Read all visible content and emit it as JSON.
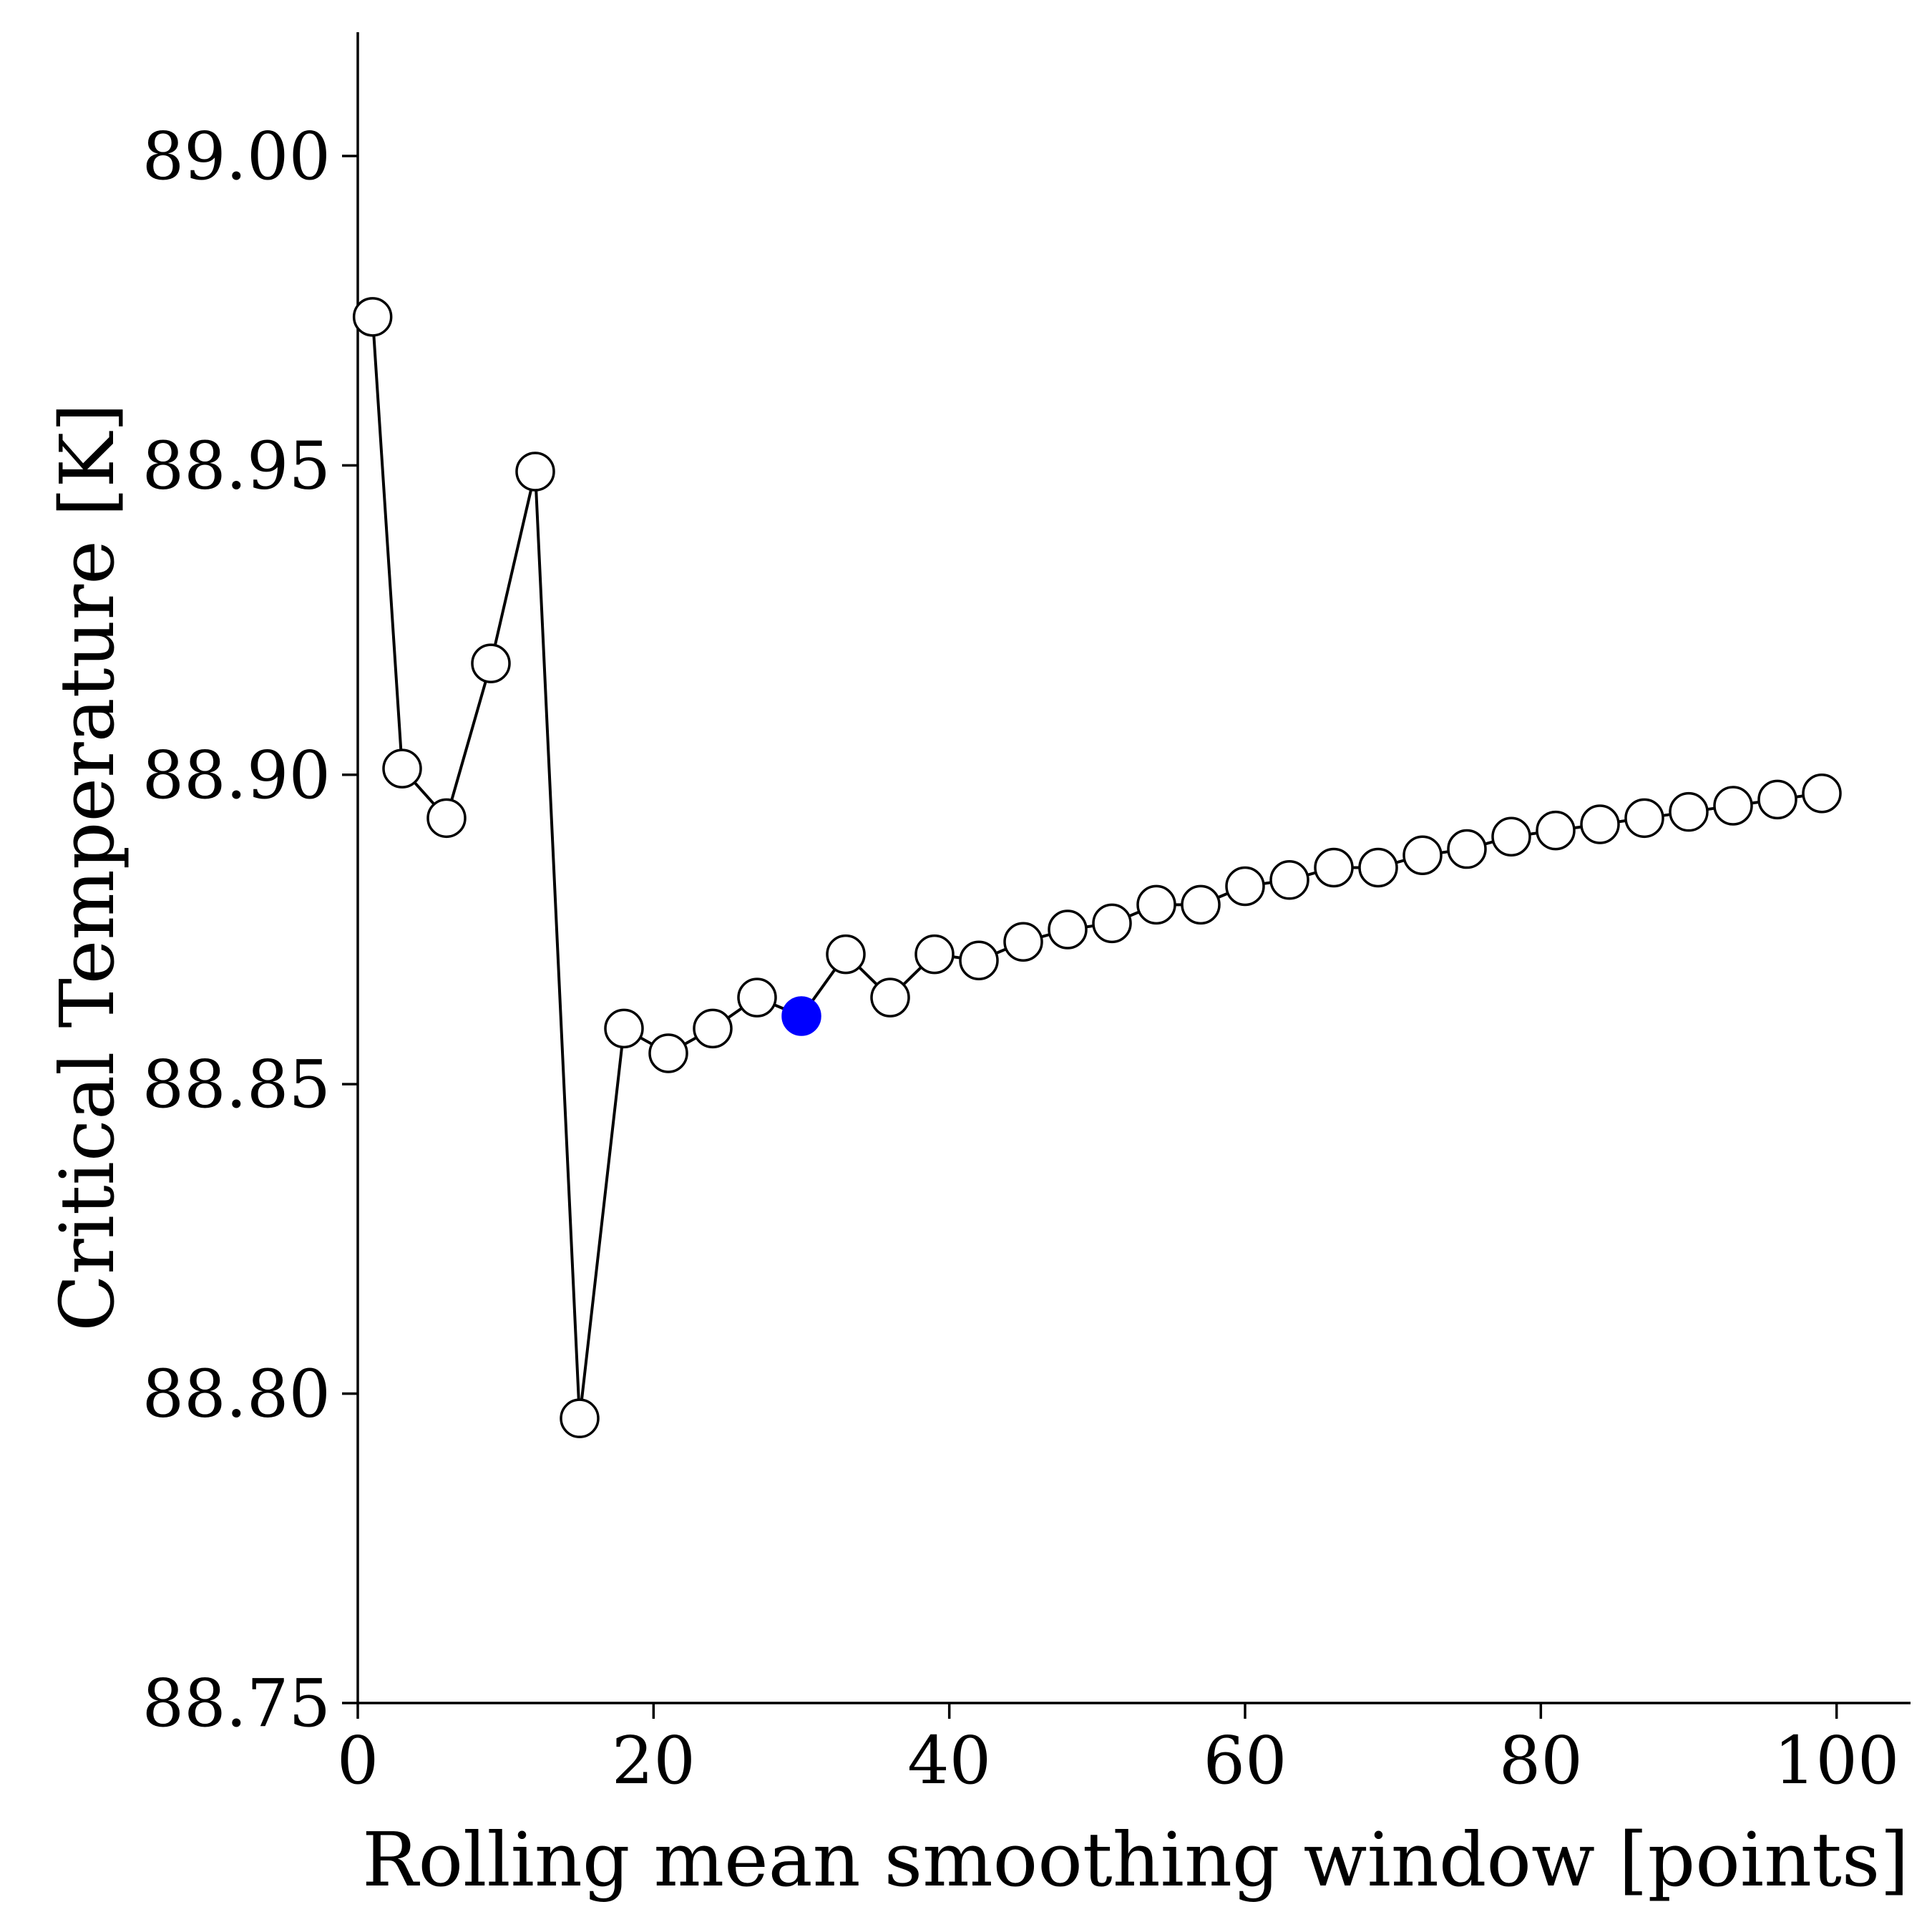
{
  "chart_data": {
    "type": "line",
    "title": "",
    "xlabel": "Rolling mean smoothing window [points]",
    "ylabel": "Critical Temperature [K]",
    "xlim": [
      0,
      105
    ],
    "ylim": [
      88.75,
      89.02
    ],
    "x_ticks": [
      0,
      20,
      40,
      60,
      80,
      100
    ],
    "x_tick_labels": [
      "0",
      "20",
      "40",
      "60",
      "80",
      "100"
    ],
    "y_ticks": [
      88.75,
      88.8,
      88.85,
      88.9,
      88.95,
      89.0
    ],
    "y_tick_labels": [
      "88.75",
      "88.80",
      "88.85",
      "88.90",
      "88.95",
      "89.00"
    ],
    "grid": false,
    "series": [
      {
        "x": [
          1,
          3,
          6,
          9,
          12,
          15,
          18,
          21,
          24,
          27,
          30,
          33,
          36,
          39,
          42,
          45,
          48,
          51,
          54,
          57,
          60,
          63,
          66,
          69,
          72,
          75,
          78,
          81,
          84,
          87,
          90,
          93,
          96,
          99
        ],
        "y": [
          88.974,
          88.901,
          88.893,
          88.918,
          88.949,
          88.796,
          88.859,
          88.855,
          88.859,
          88.864,
          88.861,
          88.871,
          88.864,
          88.871,
          88.87,
          88.873,
          88.875,
          88.876,
          88.879,
          88.879,
          88.882,
          88.883,
          88.885,
          88.885,
          88.887,
          88.888,
          88.89,
          88.891,
          88.892,
          88.893,
          88.894,
          88.895,
          88.896,
          88.897
        ],
        "line_color": "#000000",
        "marker_fill": "#ffffff",
        "highlight_index": 10,
        "highlight_color": "#0000ff"
      }
    ]
  }
}
